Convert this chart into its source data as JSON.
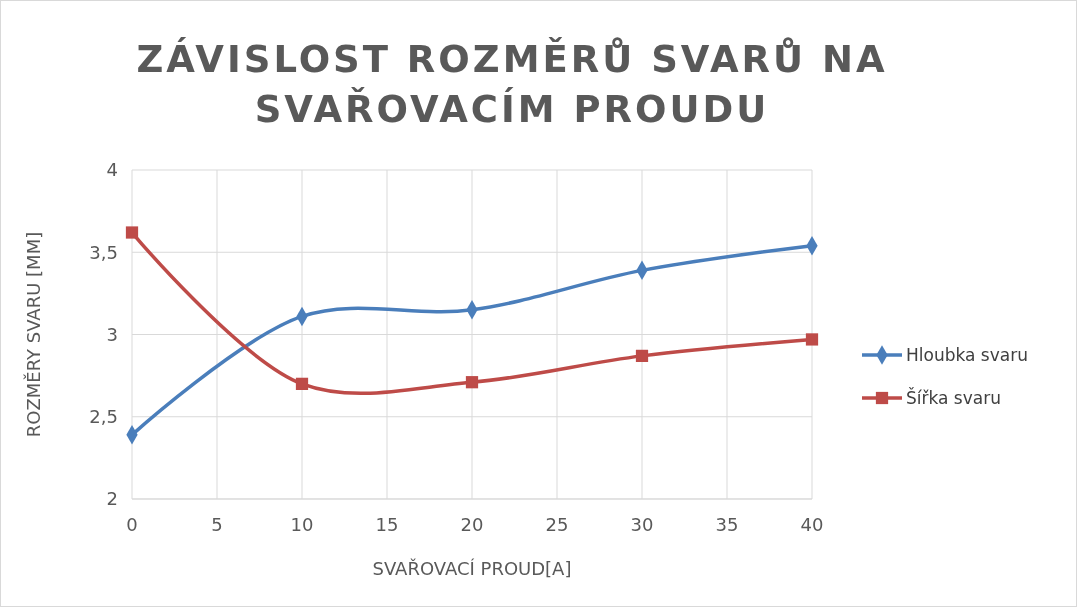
{
  "chart_data": {
    "type": "line",
    "title": "ZÁVISLOST ROZMĚRŮ SVARŮ NA SVAŘOVACÍM PROUDU",
    "xlabel": "SVAŘOVACÍ PROUD[A]",
    "ylabel": "ROZMĚRY SVARU [MM]",
    "x": [
      0,
      10,
      20,
      30,
      40
    ],
    "series": [
      {
        "name": "Hloubka svaru",
        "color": "#4a7ebb",
        "marker": "diamond",
        "values": [
          2.39,
          3.11,
          3.15,
          3.39,
          3.54
        ]
      },
      {
        "name": "Šířka svaru",
        "color": "#be4b48",
        "marker": "square",
        "values": [
          3.62,
          2.7,
          2.71,
          2.87,
          2.97
        ]
      }
    ],
    "xlim": [
      0,
      40
    ],
    "xticks": [
      0,
      5,
      10,
      15,
      20,
      25,
      30,
      35,
      40
    ],
    "ylim": [
      2,
      4
    ],
    "yticks": [
      2,
      {
        "value": 2.5,
        "label": "2,5"
      },
      3,
      {
        "value": 3.5,
        "label": "3,5"
      },
      4
    ],
    "grid": true,
    "legend": "right",
    "line_style": "solid"
  }
}
